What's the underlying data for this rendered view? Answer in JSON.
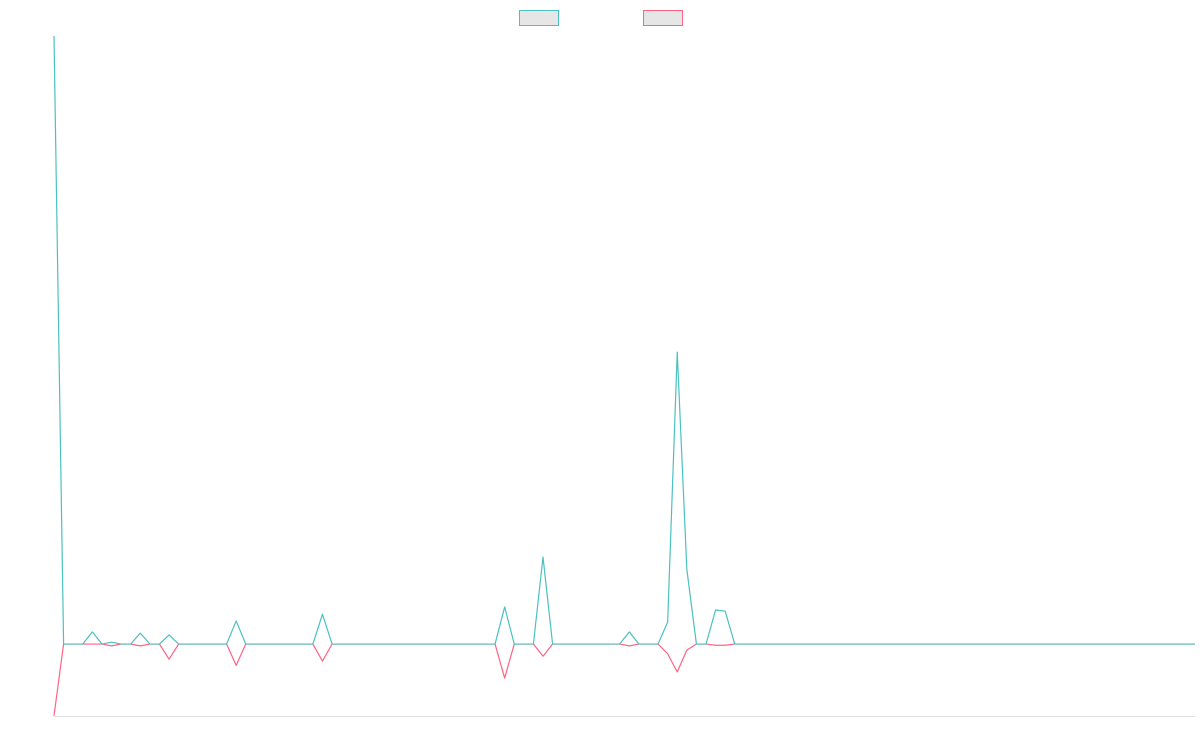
{
  "chart_data": {
    "type": "line",
    "categories": [
      null,
      null,
      null,
      null,
      null,
      null,
      null,
      null,
      null,
      null,
      null,
      null,
      null,
      null,
      null,
      null,
      null,
      null,
      null,
      null,
      null,
      null,
      null,
      null,
      null,
      null,
      null,
      null,
      null,
      null,
      null,
      null,
      null,
      null,
      null,
      null,
      null,
      null,
      null,
      null,
      null,
      null,
      null,
      null,
      null,
      null,
      null,
      null,
      null,
      null,
      null,
      null,
      null,
      null,
      null,
      null,
      null,
      null,
      null,
      null,
      null,
      null,
      null,
      null,
      null,
      null,
      null,
      null,
      null,
      null,
      null,
      null,
      null,
      null,
      null,
      null,
      null,
      null,
      null,
      null,
      null,
      null,
      null,
      null,
      null,
      null,
      null,
      null,
      null,
      null,
      null,
      null,
      null,
      null,
      null,
      null,
      null,
      null,
      null,
      null,
      null,
      null,
      null,
      null,
      null,
      null,
      null,
      null,
      null,
      null,
      null,
      null,
      null,
      null,
      null,
      null,
      null,
      null,
      null,
      null
    ],
    "series": [
      {
        "color": "#4bc0c0",
        "values": [
          100,
          0,
          0,
          0,
          2,
          0,
          0.3,
          0,
          0,
          1.8,
          0,
          0,
          1.5,
          0,
          0,
          0,
          0,
          0,
          0,
          3.8,
          0,
          0,
          0,
          0,
          0,
          0,
          0,
          0,
          4.9,
          0,
          0,
          0,
          0,
          0,
          0,
          0,
          0,
          0,
          0,
          0,
          0,
          0,
          0,
          0,
          0,
          0,
          0,
          6.1,
          0,
          0,
          0,
          14.3,
          0,
          0,
          0,
          0,
          0,
          0,
          0,
          0,
          2,
          0,
          0,
          0,
          3.6,
          48,
          12.3,
          0,
          0,
          5.6,
          5.4,
          0,
          0,
          0,
          0,
          0,
          0,
          0,
          0,
          0,
          0,
          0,
          0,
          0,
          0,
          0,
          0,
          0,
          0,
          0,
          0,
          0,
          0,
          0,
          0,
          0,
          0,
          0,
          0,
          0,
          0,
          0,
          0,
          0,
          0,
          0,
          0,
          0,
          0,
          0,
          0,
          0,
          0,
          0,
          0,
          0,
          0,
          0,
          0,
          0
        ]
      },
      {
        "color": "#ff6384",
        "values": [
          -11.8,
          0,
          0,
          0,
          0,
          0,
          -0.3,
          0,
          0,
          -0.3,
          0,
          0,
          -2.5,
          0,
          0,
          0,
          0,
          0,
          0,
          -3.5,
          0,
          0,
          0,
          0,
          0,
          0,
          0,
          0,
          -2.8,
          0,
          0,
          0,
          0,
          0,
          0,
          0,
          0,
          0,
          0,
          0,
          0,
          0,
          0,
          0,
          0,
          0,
          0,
          -5.6,
          0,
          0,
          0,
          -2,
          0,
          0,
          0,
          0,
          0,
          0,
          0,
          0,
          -0.3,
          0,
          0,
          0,
          -1.6,
          -4.6,
          -1,
          0,
          0,
          -0.2,
          -0.2,
          0,
          0,
          0,
          0,
          0,
          0,
          0,
          0,
          0,
          0,
          0,
          0,
          0,
          0,
          0,
          0,
          0,
          0,
          0,
          0,
          0,
          0,
          0,
          0,
          0,
          0,
          0,
          0,
          0,
          0,
          0,
          0,
          0,
          0,
          0,
          0,
          0,
          0,
          0,
          0,
          0,
          0,
          0,
          0,
          0,
          0,
          0,
          0,
          0
        ]
      }
    ],
    "ylim": [
      -12,
      100
    ],
    "legend": "top"
  }
}
